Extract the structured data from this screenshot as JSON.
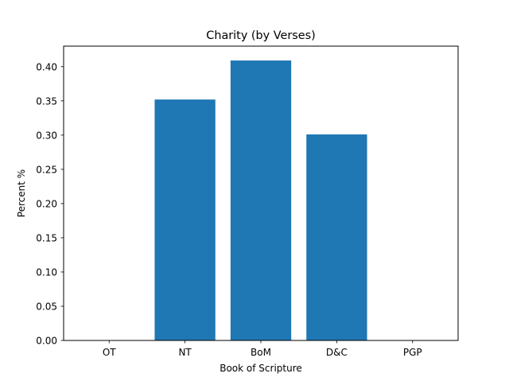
{
  "chart_data": {
    "type": "bar",
    "title": "Charity (by Verses)",
    "xlabel": "Book of Scripture",
    "ylabel": "Percent %",
    "categories": [
      "OT",
      "NT",
      "BoM",
      "D&C",
      "PGP"
    ],
    "values": [
      0.0,
      0.352,
      0.409,
      0.301,
      0.0
    ],
    "ylim": [
      0,
      0.43
    ],
    "yticks": [
      "0.00",
      "0.05",
      "0.10",
      "0.15",
      "0.20",
      "0.25",
      "0.30",
      "0.35",
      "0.40"
    ],
    "bar_color": "#1f77b4",
    "grid": false,
    "legend": "none"
  }
}
